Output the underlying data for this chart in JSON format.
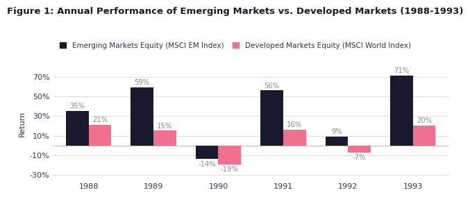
{
  "title": "Figure 1: Annual Performance of Emerging Markets vs. Developed Markets (1988-1993)",
  "years": [
    1988,
    1989,
    1990,
    1991,
    1992,
    1993
  ],
  "emerging": [
    35,
    59,
    -14,
    56,
    9,
    71
  ],
  "developed": [
    21,
    15,
    -19,
    16,
    -7,
    20
  ],
  "emerging_color": "#1a1a2e",
  "developed_color": "#f07090",
  "bar_width": 0.35,
  "ylim": [
    -35,
    80
  ],
  "yticks": [
    -30,
    -10,
    10,
    30,
    50,
    70
  ],
  "ytick_labels": [
    "-30%",
    "-10%",
    "10%",
    "30%",
    "50%",
    "70%"
  ],
  "ylabel": "Return",
  "legend_emerging": "Emerging Markets Equity (MSCI EM Index)",
  "legend_developed": "Developed Markets Equity (MSCI World Index)",
  "background_color": "#ffffff",
  "grid_color": "#dddddd",
  "label_color": "#888899",
  "title_fontsize": 9.5,
  "axis_fontsize": 8,
  "label_fontsize": 7.2,
  "tick_color": "#333355"
}
